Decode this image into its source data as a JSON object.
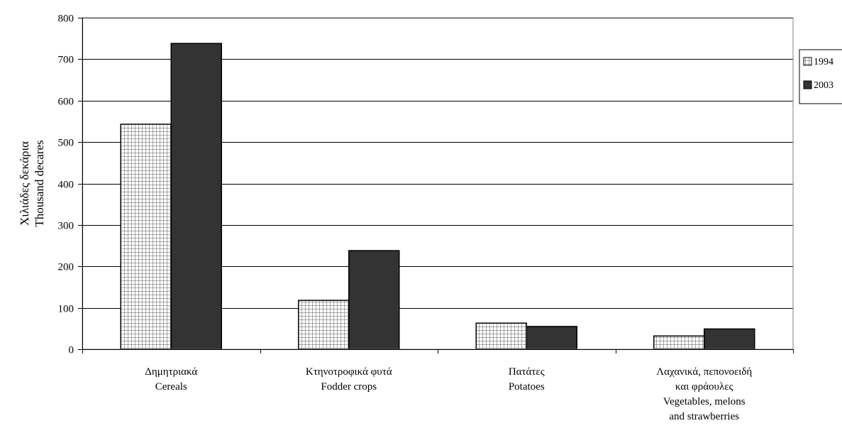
{
  "chart_data": {
    "type": "bar",
    "categories": [
      [
        "Δημητριακά",
        "Cereals"
      ],
      [
        "Κτηνοτροφικά φυτά",
        "Fodder crops"
      ],
      [
        "Πατάτες",
        "Potatoes"
      ],
      [
        "Λαχανικά, πεπονοειδή",
        "και φράουλες",
        "Vegetables, melons",
        "and strawberries"
      ]
    ],
    "series": [
      {
        "name": "1994",
        "values": [
          543,
          118,
          63,
          32
        ],
        "color": "#ffffff",
        "pattern": "grid"
      },
      {
        "name": "2003",
        "values": [
          738,
          238,
          55,
          49
        ],
        "color": "#333333",
        "pattern": "solid"
      }
    ],
    "ylabel": [
      "Χιλιάδες δεκάρια",
      "Thousand decares"
    ],
    "xlabel": "",
    "title": "",
    "ylim": [
      0,
      800
    ],
    "yticks": [
      0,
      100,
      200,
      300,
      400,
      500,
      600,
      700,
      800
    ],
    "grid": true,
    "legend": "right"
  }
}
